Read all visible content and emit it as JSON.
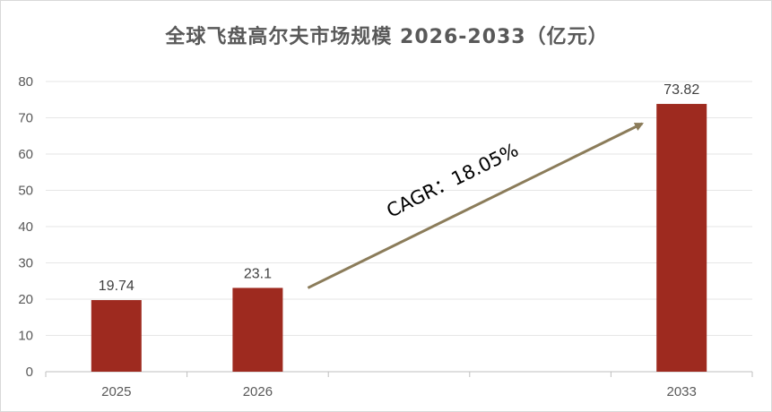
{
  "chart_data": {
    "type": "bar",
    "title": "全球飞盘高尔夫市场规模 2026-2033（亿元）",
    "categories": [
      "2025",
      "2026",
      "",
      "",
      "2033"
    ],
    "values": [
      19.74,
      23.1,
      null,
      null,
      73.82
    ],
    "data_labels": [
      "19.74",
      "23.1",
      "",
      "",
      "73.82"
    ],
    "ylim": [
      0,
      80
    ],
    "yticks": [
      "0",
      "10",
      "20",
      "30",
      "40",
      "50",
      "60",
      "70",
      "80"
    ],
    "xlabel": "",
    "ylabel": "",
    "grid": true,
    "legend": "none",
    "bar_color": "#9e2a1f",
    "annotation": {
      "text": "CAGR：18.05%",
      "arrow_color": "#8b7c5a",
      "from_category": "2026",
      "to_category": "2033"
    }
  }
}
